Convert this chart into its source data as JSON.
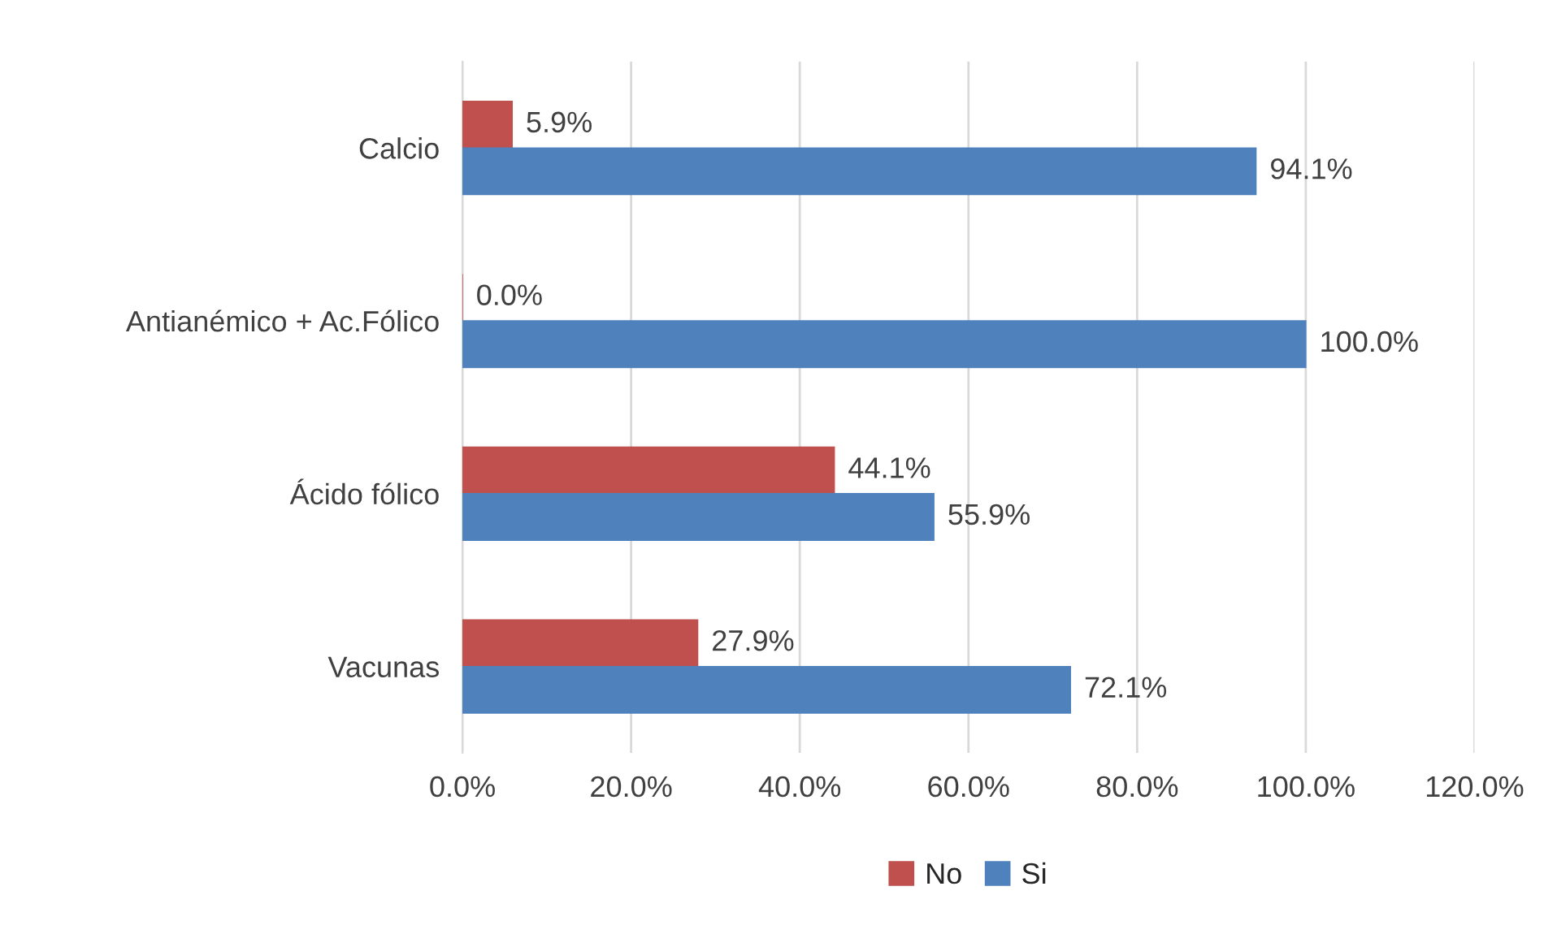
{
  "chart_data": {
    "type": "bar",
    "orientation": "horizontal",
    "categories": [
      "Calcio",
      "Antianémico + Ac.Fólico",
      "Ácido fólico",
      "Vacunas"
    ],
    "series": [
      {
        "name": "No",
        "color": "#c0504d",
        "values": [
          5.9,
          0.0,
          44.1,
          27.9
        ],
        "value_labels": [
          "5.9%",
          "0.0%",
          "44.1%",
          "27.9%"
        ]
      },
      {
        "name": "Si",
        "color": "#4f81bd",
        "values": [
          94.1,
          100.0,
          55.9,
          72.1
        ],
        "value_labels": [
          "94.1%",
          "100.0%",
          "55.9%",
          "72.1%"
        ]
      }
    ],
    "xlim": [
      0,
      120
    ],
    "xticks": [
      {
        "value": 0,
        "label": "0.0%"
      },
      {
        "value": 20,
        "label": "20.0%"
      },
      {
        "value": 40,
        "label": "40.0%"
      },
      {
        "value": 60,
        "label": "60.0%"
      },
      {
        "value": 80,
        "label": "80.0%"
      },
      {
        "value": 100,
        "label": "100.0%"
      },
      {
        "value": 120,
        "label": "120.0%"
      }
    ],
    "grid": "x",
    "legend": "bottom"
  }
}
